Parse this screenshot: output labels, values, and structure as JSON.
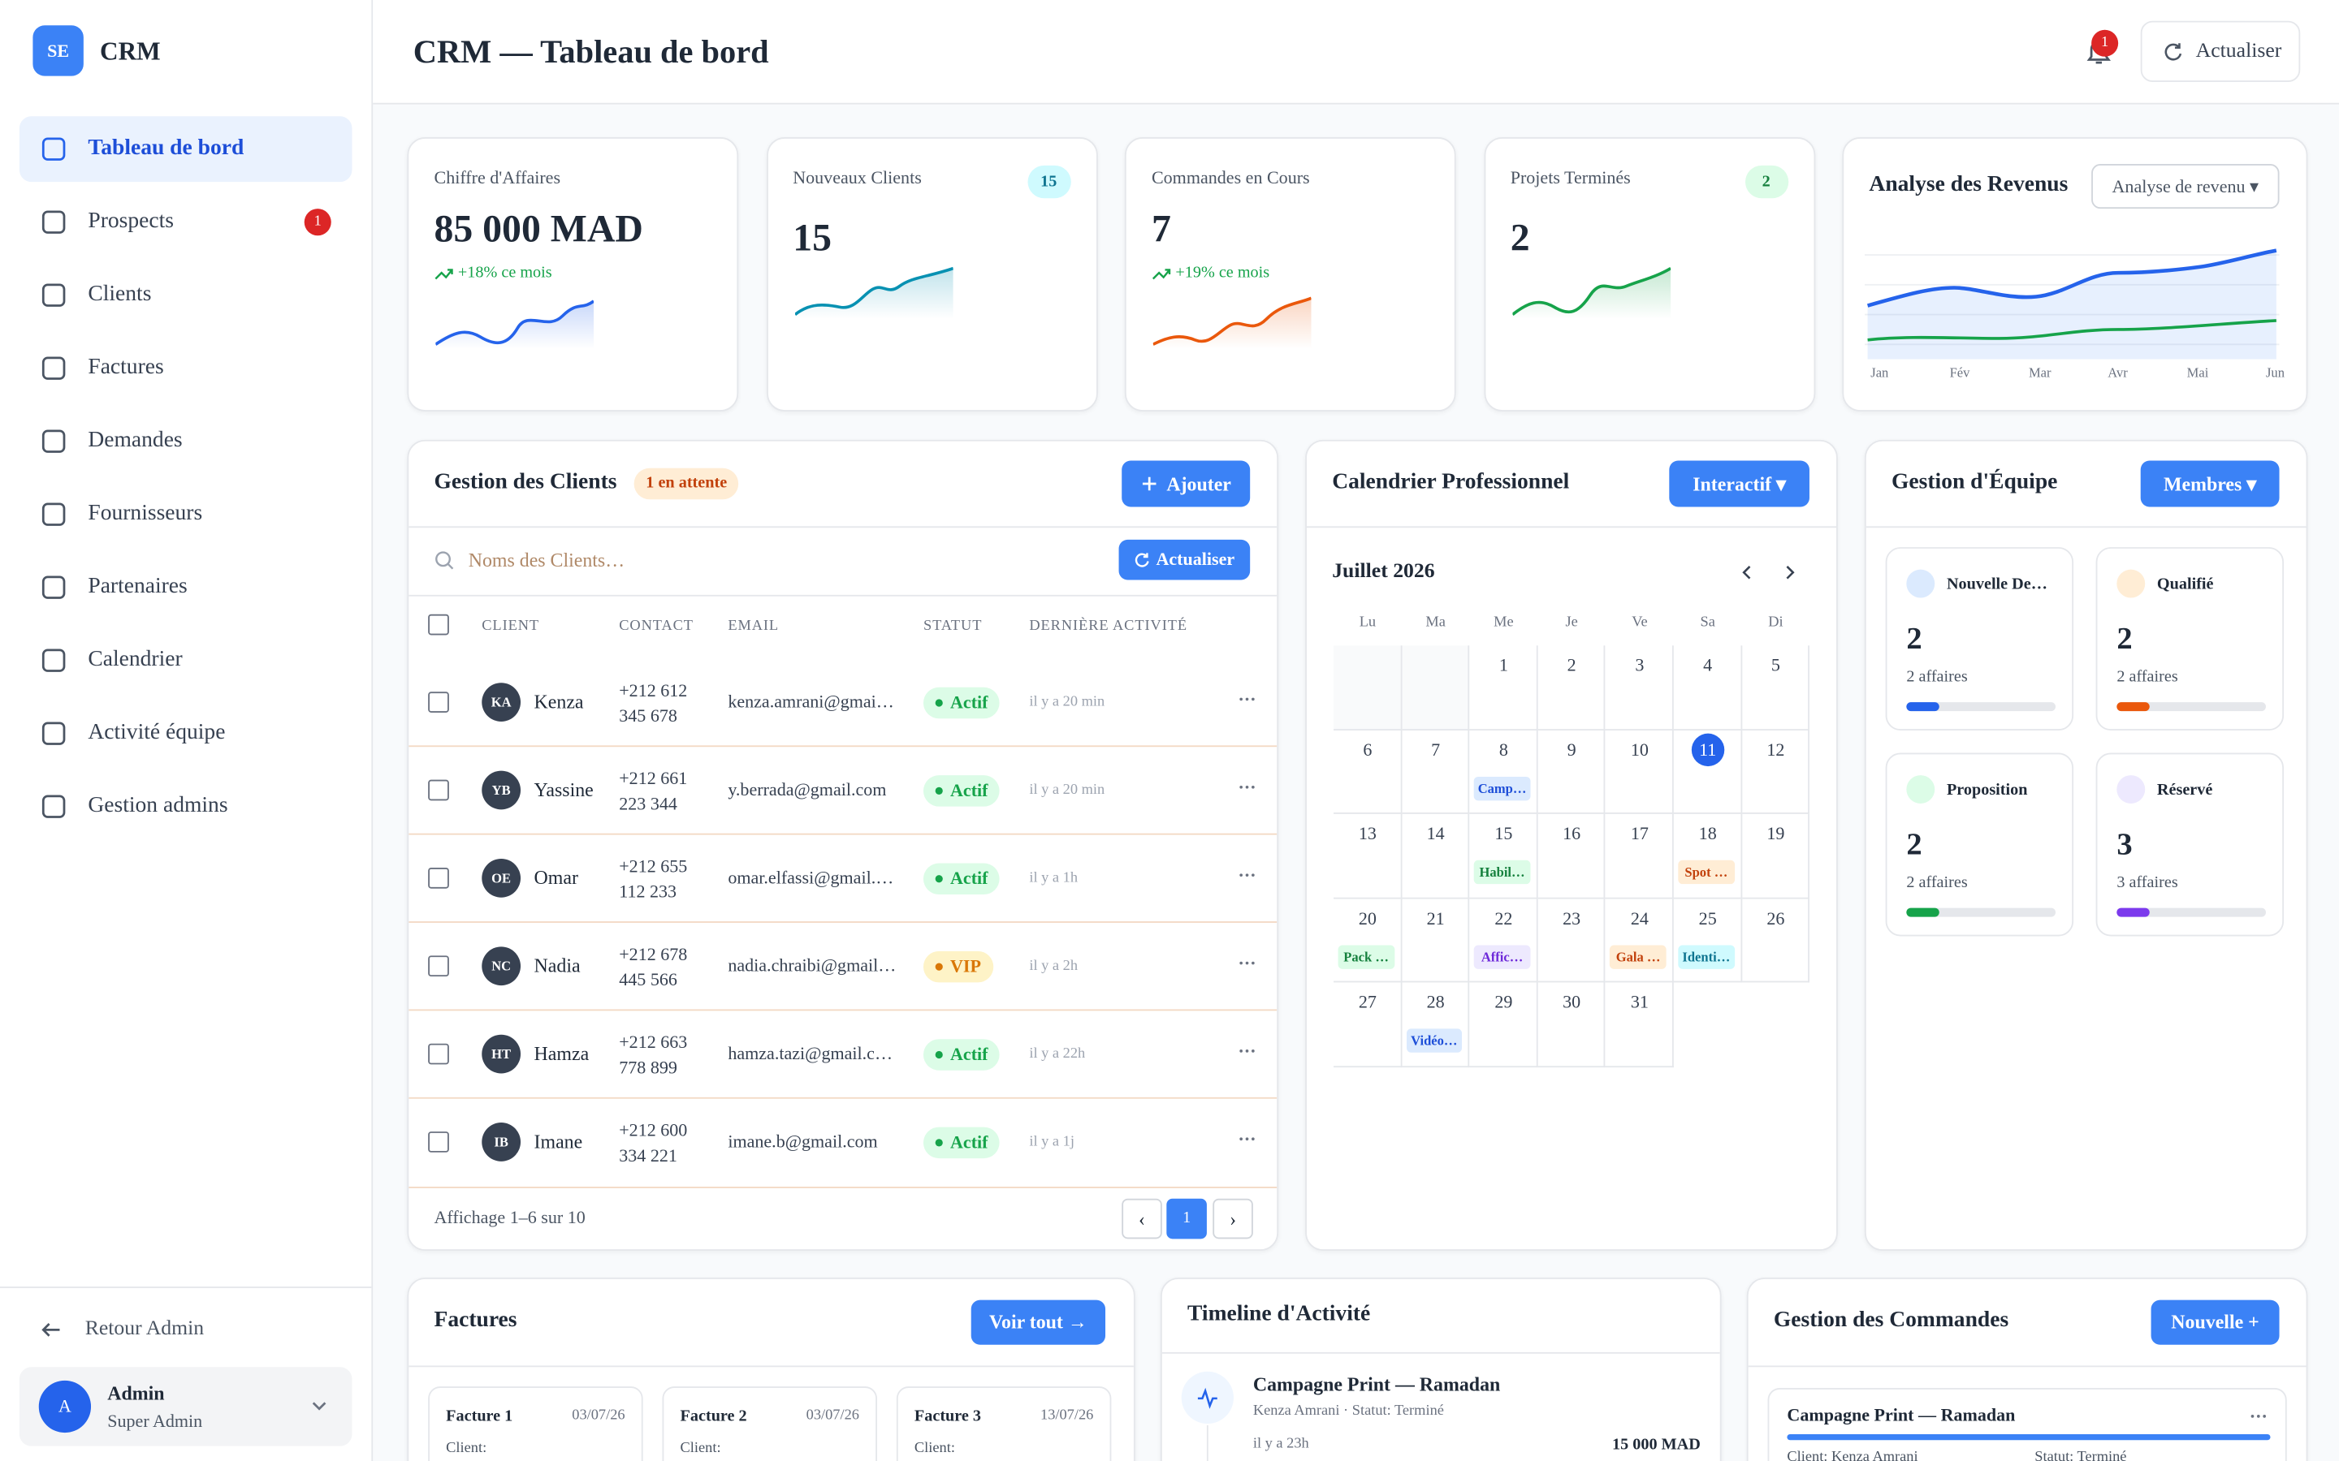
{
  "sidebar": {
    "logo": "SE",
    "brand": "CRM",
    "nav": [
      {
        "label": "Tableau de bord",
        "active": true
      },
      {
        "label": "Prospects",
        "badge": "1"
      },
      {
        "label": "Clients"
      },
      {
        "label": "Factures"
      },
      {
        "label": "Demandes"
      },
      {
        "label": "Fournisseurs"
      },
      {
        "label": "Partenaires"
      },
      {
        "label": "Calendrier"
      },
      {
        "label": "Activité équipe"
      },
      {
        "label": "Gestion admins"
      }
    ],
    "back": "Retour Admin",
    "user": {
      "avatar": "A",
      "name": "Admin",
      "role": "Super Admin"
    }
  },
  "header": {
    "title": "CRM — Tableau de bord",
    "notifications": "1",
    "refresh": "Actualiser"
  },
  "kpis": [
    {
      "label": "Chiffre d'Affaires",
      "value": "85 000 MAD",
      "trend": "+18% ce mois",
      "color": "#2563eb"
    },
    {
      "label": "Nouveaux Clients",
      "value": "15",
      "badge": "15",
      "badge_bg": "#cffafe",
      "badge_color": "#0e7490",
      "color": "#0891b2"
    },
    {
      "label": "Commandes en Cours",
      "value": "7",
      "trend": "+19% ce mois",
      "color": "#ea580c"
    },
    {
      "label": "Projets Terminés",
      "value": "2",
      "badge": "2",
      "badge_bg": "#dcfce7",
      "badge_color": "#15803d",
      "color": "#16a34a"
    }
  ],
  "revenue": {
    "title": "Analyse des Revenus",
    "select": "Analyse de revenu ▾",
    "months": [
      "Jan",
      "Fév",
      "Mar",
      "Avr",
      "Mai",
      "Jun"
    ]
  },
  "clients": {
    "title": "Gestion des Clients",
    "badge": "1 en attente",
    "add": "Ajouter",
    "search": "Noms des Clients…",
    "refresh": "Actualiser",
    "columns": [
      "CLIENT",
      "CONTACT",
      "EMAIL",
      "STATUT",
      "DERNIÈRE ACTIVITÉ"
    ],
    "rows": [
      {
        "initials": "KA",
        "name": "Kenza",
        "phone": [
          "+212 612",
          "345 678"
        ],
        "email": "kenza.amrani@gmai…",
        "status": "Actif",
        "status_color": "#16a34a",
        "status_bg": "#dcfce7",
        "activity": "il y a 20 min"
      },
      {
        "initials": "YB",
        "name": "Yassine",
        "phone": [
          "+212 661",
          "223 344"
        ],
        "email": "y.berrada@gmail.com",
        "status": "Actif",
        "status_color": "#16a34a",
        "status_bg": "#dcfce7",
        "activity": "il y a 20 min"
      },
      {
        "initials": "OE",
        "name": "Omar",
        "phone": [
          "+212 655",
          "112 233"
        ],
        "email": "omar.elfassi@gmail.…",
        "status": "Actif",
        "status_color": "#16a34a",
        "status_bg": "#dcfce7",
        "activity": "il y a 1h"
      },
      {
        "initials": "NC",
        "name": "Nadia",
        "phone": [
          "+212 678",
          "445 566"
        ],
        "email": "nadia.chraibi@gmail…",
        "status": "VIP",
        "status_color": "#d97706",
        "status_bg": "#fef3c7",
        "activity": "il y a 2h"
      },
      {
        "initials": "HT",
        "name": "Hamza",
        "phone": [
          "+212 663",
          "778 899"
        ],
        "email": "hamza.tazi@gmail.c…",
        "status": "Actif",
        "status_color": "#16a34a",
        "status_bg": "#dcfce7",
        "activity": "il y a 22h"
      },
      {
        "initials": "IB",
        "name": "Imane",
        "phone": [
          "+212 600",
          "334 221"
        ],
        "email": "imane.b@gmail.com",
        "status": "Actif",
        "status_color": "#16a34a",
        "status_bg": "#dcfce7",
        "activity": "il y a 1j"
      }
    ],
    "footer": "Affichage 1–6 sur 10",
    "page": "1"
  },
  "calendar": {
    "title": "Calendrier Professionnel",
    "button": "Interactif ▾",
    "month": "Juillet 2026",
    "weekdays": [
      "Lu",
      "Ma",
      "Me",
      "Je",
      "Ve",
      "Sa",
      "Di"
    ],
    "today": 11,
    "days": [
      1,
      2,
      3,
      4,
      5,
      6,
      7,
      8,
      9,
      10,
      11,
      12,
      13,
      14,
      15,
      16,
      17,
      18,
      19,
      20,
      21,
      22,
      23,
      24,
      25,
      26,
      27,
      28,
      29,
      30,
      31
    ],
    "events": [
      {
        "day": 8,
        "label": "Camp…",
        "bg": "#dbeafe",
        "color": "#1d4ed8"
      },
      {
        "day": 15,
        "label": "Habil…",
        "bg": "#dcfce7",
        "color": "#15803d"
      },
      {
        "day": 18,
        "label": "Spot …",
        "bg": "#ffedd5",
        "color": "#c2410c"
      },
      {
        "day": 20,
        "label": "Pack …",
        "bg": "#dcfce7",
        "color": "#15803d"
      },
      {
        "day": 22,
        "label": "Affic…",
        "bg": "#ede9fe",
        "color": "#6d28d9"
      },
      {
        "day": 24,
        "label": "Gala …",
        "bg": "#ffedd5",
        "color": "#c2410c"
      },
      {
        "day": 25,
        "label": "Identi…",
        "bg": "#cffafe",
        "color": "#0e7490"
      },
      {
        "day": 28,
        "label": "Vidéo…",
        "bg": "#dbeafe",
        "color": "#1d4ed8"
      }
    ]
  },
  "team": {
    "title": "Gestion d'Équipe",
    "button": "Membres ▾",
    "stages": [
      {
        "name": "Nouvelle De…",
        "count": "2",
        "deals": "2 affaires",
        "color": "#2563eb",
        "dot": "#dbeafe"
      },
      {
        "name": "Qualifié",
        "count": "2",
        "deals": "2 affaires",
        "color": "#ea580c",
        "dot": "#ffedd5"
      },
      {
        "name": "Proposition",
        "count": "2",
        "deals": "2 affaires",
        "color": "#16a34a",
        "dot": "#dcfce7"
      },
      {
        "name": "Réservé",
        "count": "3",
        "deals": "3 affaires",
        "color": "#7c3aed",
        "dot": "#ede9fe"
      }
    ]
  },
  "invoices": {
    "title": "Factures",
    "button": "Voir tout →",
    "cards": [
      {
        "title": "Facture 1",
        "date": "03/07/26",
        "client": "Client:"
      },
      {
        "title": "Facture 2",
        "date": "03/07/26",
        "client": "Client:"
      },
      {
        "title": "Facture 3",
        "date": "13/07/26",
        "client": "Client:"
      }
    ]
  },
  "timeline": {
    "title": "Timeline d'Activité",
    "items": [
      {
        "title": "Campagne Print — Ramadan",
        "meta": "Kenza Amrani · Statut: Terminé",
        "time": "il y a 23h",
        "amount": "15 000 MAD"
      }
    ]
  },
  "orders": {
    "title": "Gestion des Commandes",
    "button": "Nouvelle +",
    "cards": [
      {
        "title": "Campagne Print — Ramadan",
        "client": "Client: Kenza Amrani",
        "status": "Statut: Terminé"
      }
    ]
  }
}
